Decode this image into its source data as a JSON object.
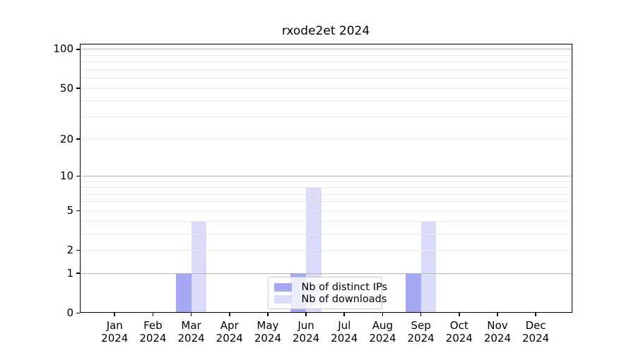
{
  "figure": {
    "background": "#ffffff"
  },
  "chart_data": {
    "type": "bar",
    "title": "rxode2et 2024",
    "year_label": "2024",
    "categories": [
      "Jan",
      "Feb",
      "Mar",
      "Apr",
      "May",
      "Jun",
      "Jul",
      "Aug",
      "Sep",
      "Oct",
      "Nov",
      "Dec"
    ],
    "series": [
      {
        "name": "Nb of distinct IPs",
        "color": "#a5a8f2",
        "values": [
          0,
          0,
          1,
          0,
          0,
          1,
          0,
          0,
          1,
          0,
          0,
          0
        ]
      },
      {
        "name": "Nb of downloads",
        "color": "#d9dbf9",
        "values": [
          0,
          0,
          4,
          0,
          0,
          8,
          0,
          0,
          4,
          0,
          0,
          0
        ]
      }
    ],
    "xlabel": "",
    "ylabel": "",
    "yscale": "log1p",
    "ylim": [
      0,
      110
    ],
    "yticks": [
      100,
      50,
      20,
      10,
      5,
      2,
      1,
      0
    ],
    "major_gridlines": [
      1,
      10,
      100
    ],
    "minor_gridlines": [
      2,
      3,
      4,
      5,
      6,
      7,
      8,
      9,
      20,
      30,
      40,
      50,
      60,
      70,
      80,
      90
    ],
    "grid": "on",
    "legend_position": "lower center",
    "colors": {
      "axis": "#000000",
      "major_grid": "#b4b4b4",
      "minor_grid": "#e8e8e8",
      "text": "#000000"
    }
  }
}
